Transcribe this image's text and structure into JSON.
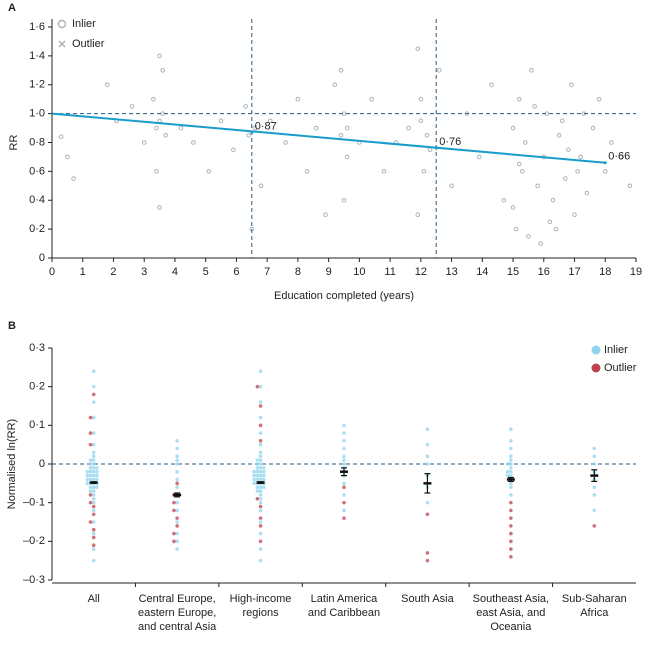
{
  "chart_data": [
    {
      "type": "scatter",
      "label": "A",
      "xlabel": "Education completed (years)",
      "ylabel": "RR",
      "xlim": [
        0,
        19
      ],
      "ylim": [
        0,
        1.6
      ],
      "xticks": [
        0,
        1,
        2,
        3,
        4,
        5,
        6,
        7,
        8,
        9,
        10,
        11,
        12,
        13,
        14,
        15,
        16,
        17,
        18,
        19
      ],
      "yticks": [
        0,
        {
          "value": 0.2,
          "label": "0·2"
        },
        {
          "value": 0.4,
          "label": "0·4"
        },
        {
          "value": 0.6,
          "label": "0·6"
        },
        {
          "value": 0.8,
          "label": "0·8"
        },
        {
          "value": 1.0,
          "label": "1·0"
        },
        {
          "value": 1.2,
          "label": "1·2"
        },
        {
          "value": 1.4,
          "label": "1·4"
        },
        {
          "value": 1.6,
          "label": "1·6"
        }
      ],
      "series": [
        {
          "name": "Inlier",
          "color": "#aab3bb",
          "marker": "circle",
          "x": [
            0.3,
            0.5,
            0.7,
            1.8,
            2.1,
            2.6,
            3.0,
            3.3,
            3.4,
            3.5,
            3.5,
            3.6,
            3.7,
            3.4,
            3.6,
            3.5,
            4.2,
            4.6,
            5.1,
            5.5,
            5.9,
            6.3,
            6.5,
            6.6,
            6.8,
            6.4,
            7.1,
            7.6,
            8.0,
            8.3,
            8.6,
            8.9,
            9.2,
            9.4,
            9.5,
            9.6,
            9.5,
            9.4,
            9.6,
            10.0,
            10.4,
            10.8,
            11.2,
            11.6,
            11.9,
            12.0,
            12.1,
            12.2,
            11.9,
            12.0,
            12.3,
            12.6,
            13.0,
            13.5,
            13.9,
            14.3,
            14.7,
            15.0,
            15.1,
            15.2,
            15.3,
            15.0,
            15.4,
            15.6,
            15.8,
            16.0,
            15.9,
            16.1,
            16.3,
            16.5,
            16.7,
            16.9,
            17.0,
            16.6,
            17.2,
            17.4,
            17.6,
            17.8,
            18.0,
            18.2,
            18.5,
            18.8,
            15.5,
            16.2,
            16.8,
            17.3,
            15.2,
            15.7,
            16.4,
            17.1
          ],
          "y": [
            0.84,
            0.7,
            0.55,
            1.2,
            0.95,
            1.05,
            0.8,
            1.1,
            0.9,
            1.4,
            0.95,
            1.3,
            0.85,
            0.6,
            1.0,
            0.35,
            0.9,
            0.8,
            0.6,
            0.95,
            0.75,
            1.05,
            0.2,
            0.9,
            0.5,
            0.85,
            0.95,
            0.8,
            1.1,
            0.6,
            0.9,
            0.3,
            1.2,
            0.85,
            1.0,
            0.7,
            0.4,
            1.3,
            0.9,
            0.8,
            1.1,
            0.6,
            0.8,
            0.9,
            1.45,
            0.95,
            0.6,
            0.85,
            0.3,
            1.1,
            0.75,
            1.3,
            0.5,
            1.0,
            0.7,
            1.2,
            0.4,
            0.9,
            0.2,
            1.1,
            0.6,
            0.35,
            0.8,
            1.3,
            0.5,
            0.7,
            0.1,
            1.0,
            0.4,
            0.85,
            0.55,
            1.2,
            0.3,
            0.95,
            0.7,
            0.45,
            0.9,
            1.1,
            0.6,
            0.8,
            0.7,
            0.5,
            0.15,
            0.25,
            0.75,
            1.0,
            0.65,
            1.05,
            0.2,
            0.6
          ]
        },
        {
          "name": "Outlier",
          "color": "#aab3bb",
          "marker": "x",
          "x": [],
          "y": []
        }
      ],
      "fit": {
        "x": [
          0,
          18
        ],
        "y": [
          1.0,
          0.66
        ],
        "color": "#1a9cc9"
      },
      "reference_x": [
        6.5,
        12.5
      ],
      "reference_y": [
        1.0
      ],
      "annotations": [
        {
          "x": 6.5,
          "value": 0.87,
          "label": "0·87"
        },
        {
          "x": 12.5,
          "value": 0.76,
          "label": "0·76"
        },
        {
          "x": 18,
          "value": 0.66,
          "label": "0·66"
        }
      ]
    },
    {
      "type": "swarm",
      "label": "B",
      "ylabel": "Normalised ln(RR)",
      "categories": [
        "All",
        "Central Europe, eastern Europe, and central Asia",
        "High-income regions",
        "Latin America and Caribbean",
        "South Asia",
        "Southeast Asia, east Asia, and Oceania",
        "Sub-Saharan Africa"
      ],
      "ylim": [
        -0.3,
        0.3
      ],
      "yticks": [
        {
          "value": -0.3,
          "label": "–0·3"
        },
        {
          "value": -0.2,
          "label": "–0·2"
        },
        {
          "value": -0.1,
          "label": "–0·1"
        },
        0,
        {
          "value": 0.1,
          "label": "0·1"
        },
        {
          "value": 0.2,
          "label": "0·2"
        },
        {
          "value": 0.3,
          "label": "0·3"
        }
      ],
      "reference_y": 0,
      "series": [
        {
          "name": "Inlier",
          "color": "#8fd4ec",
          "values": [
            [
              0.24,
              0.2,
              0.16,
              0.12,
              0.08,
              0.05,
              0.03,
              0.02,
              0.01,
              0.01,
              0,
              0,
              -0.01,
              -0.01,
              -0.01,
              -0.02,
              -0.02,
              -0.02,
              -0.02,
              -0.03,
              -0.03,
              -0.03,
              -0.03,
              -0.04,
              -0.04,
              -0.04,
              -0.04,
              -0.05,
              -0.05,
              -0.05,
              -0.05,
              -0.06,
              -0.06,
              -0.06,
              -0.07,
              -0.07,
              -0.08,
              -0.09,
              -0.1,
              -0.12,
              -0.15,
              -0.18,
              -0.22,
              -0.25
            ],
            [
              0.06,
              0.04,
              0.02,
              0.01,
              0,
              -0.02,
              -0.04,
              -0.06,
              -0.08,
              -0.1,
              -0.12,
              -0.15,
              -0.18,
              -0.2,
              -0.22
            ],
            [
              0.24,
              0.2,
              0.16,
              0.12,
              0.08,
              0.05,
              0.03,
              0.02,
              0.01,
              0.01,
              0,
              0,
              -0.01,
              -0.01,
              -0.01,
              -0.02,
              -0.02,
              -0.02,
              -0.02,
              -0.03,
              -0.03,
              -0.03,
              -0.03,
              -0.04,
              -0.04,
              -0.04,
              -0.04,
              -0.05,
              -0.05,
              -0.05,
              -0.05,
              -0.06,
              -0.06,
              -0.06,
              -0.07,
              -0.07,
              -0.08,
              -0.09,
              -0.1,
              -0.12,
              -0.15,
              -0.18,
              -0.22,
              -0.25
            ],
            [
              0.1,
              0.08,
              0.06,
              0.04,
              0.02,
              0.01,
              0,
              -0.01,
              -0.02,
              -0.03,
              -0.05,
              -0.08,
              -0.12
            ],
            [
              0.09,
              0.05,
              0.02,
              0,
              -0.03,
              -0.06,
              -0.1
            ],
            [
              0.09,
              0.06,
              0.04,
              0.02,
              0.01,
              0,
              0,
              -0.01,
              -0.02,
              -0.02,
              -0.03,
              -0.03,
              -0.04,
              -0.05,
              -0.06,
              -0.08
            ],
            [
              0.04,
              0.02,
              0,
              -0.02,
              -0.04,
              -0.06,
              -0.08,
              -0.12
            ]
          ]
        },
        {
          "name": "Outlier",
          "color": "#c0424e",
          "values": [
            [
              0.18,
              0.12,
              0.08,
              0.05,
              -0.08,
              -0.1,
              -0.11,
              -0.13,
              -0.15,
              -0.17,
              -0.19,
              -0.21
            ],
            [
              -0.05,
              -0.08,
              -0.1,
              -0.12,
              -0.14,
              -0.16,
              -0.18,
              -0.2
            ],
            [
              0.2,
              0.15,
              0.1,
              0.06,
              -0.09,
              -0.11,
              -0.14,
              -0.16,
              -0.2
            ],
            [
              -0.06,
              -0.1,
              -0.14
            ],
            [
              -0.13,
              -0.23,
              -0.25
            ],
            [
              -0.1,
              -0.12,
              -0.14,
              -0.16,
              -0.18,
              -0.2,
              -0.22,
              -0.24
            ],
            [
              -0.16
            ]
          ]
        }
      ],
      "mean": [
        -0.048,
        -0.08,
        -0.048,
        -0.02,
        -0.05,
        -0.04,
        -0.03
      ],
      "ci_low": [
        -0.05,
        -0.085,
        -0.05,
        -0.03,
        -0.075,
        -0.045,
        -0.045
      ],
      "ci_high": [
        -0.046,
        -0.075,
        -0.046,
        -0.01,
        -0.025,
        -0.035,
        -0.015
      ]
    }
  ]
}
